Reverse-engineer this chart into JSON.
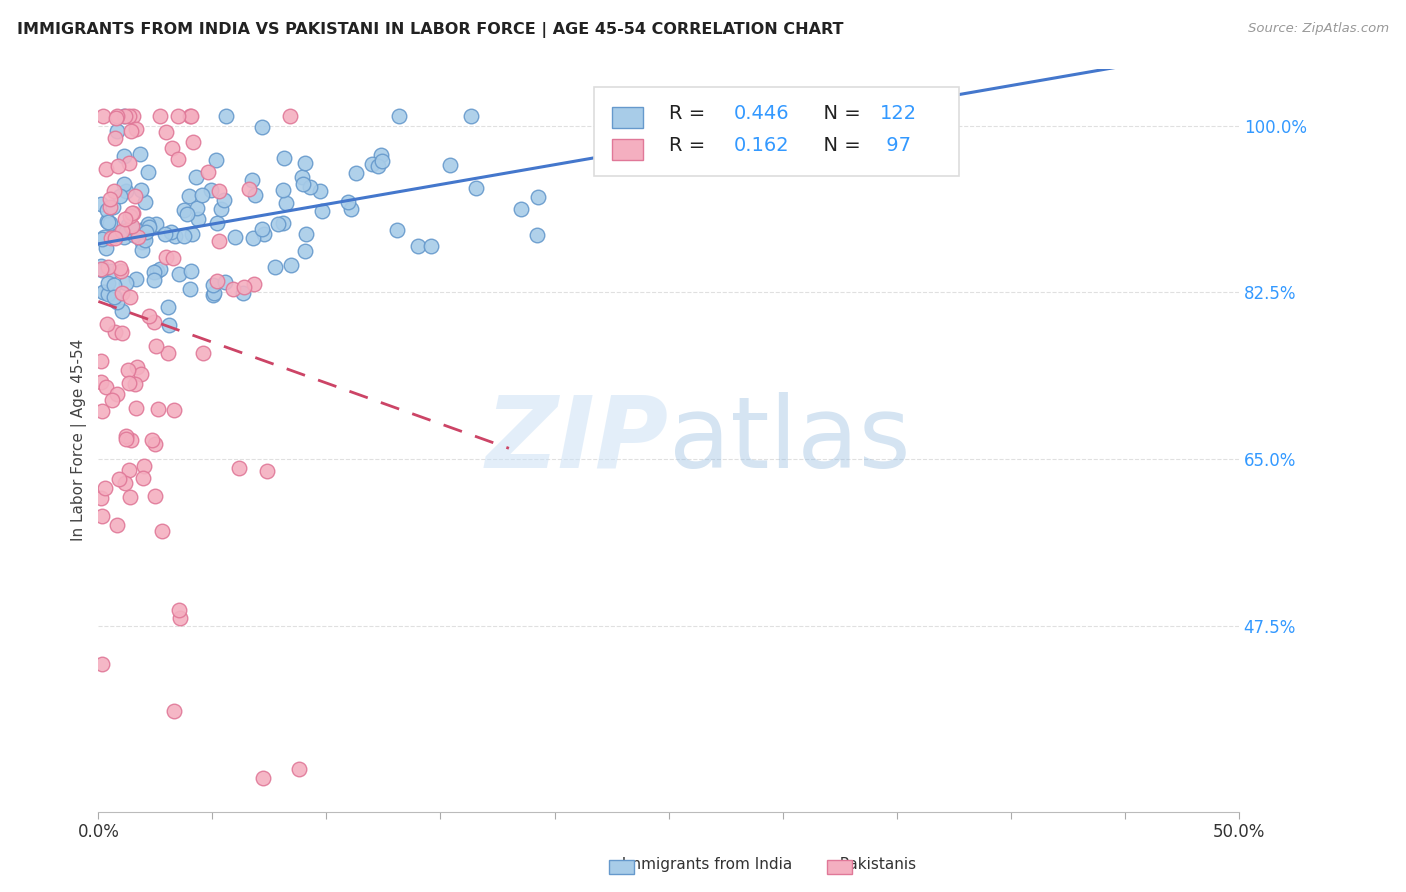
{
  "title": "IMMIGRANTS FROM INDIA VS PAKISTANI IN LABOR FORCE | AGE 45-54 CORRELATION CHART",
  "source": "Source: ZipAtlas.com",
  "ylabel": "In Labor Force | Age 45-54",
  "xlim": [
    0.0,
    0.5
  ],
  "ylim": [
    0.28,
    1.06
  ],
  "ytick_labels_right": [
    "100.0%",
    "82.5%",
    "65.0%",
    "47.5%"
  ],
  "ytick_values_right": [
    1.0,
    0.825,
    0.65,
    0.475
  ],
  "india_color": "#a8cce8",
  "pakistan_color": "#f4afc0",
  "india_edge_color": "#6699cc",
  "pakistan_edge_color": "#e07898",
  "india_R": 0.446,
  "india_N": 122,
  "pakistan_R": 0.162,
  "pakistan_N": 97,
  "legend_india_label": "Immigrants from India",
  "legend_pakistan_label": "Pakistanis",
  "india_line_color": "#4477cc",
  "pakistan_line_color": "#cc4466",
  "watermark_zip": "ZIP",
  "watermark_atlas": "atlas",
  "title_color": "#222222",
  "source_color": "#999999",
  "r_label_color": "#3399ff",
  "n_label_color": "#3399ff",
  "axis_label_color": "#444444",
  "right_tick_color": "#3399ff",
  "grid_color": "#e0e0e0",
  "background_color": "#ffffff",
  "india_seed": 42,
  "pakistan_seed": 7
}
